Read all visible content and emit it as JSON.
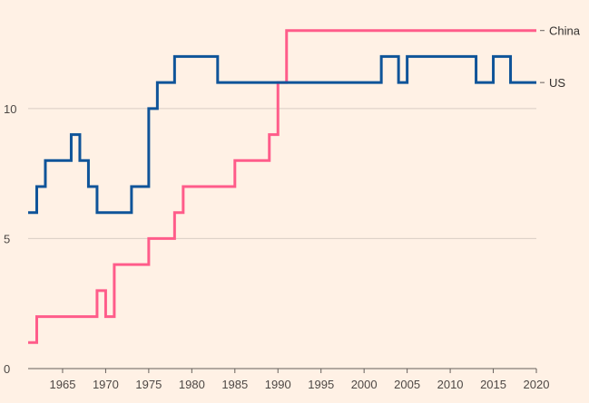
{
  "chart_data": {
    "type": "line",
    "step": "after",
    "title": "",
    "xlabel": "",
    "ylabel": "",
    "xlim": [
      1961,
      2020
    ],
    "ylim": [
      0,
      14
    ],
    "grid": true,
    "legend": "direct labels at right end of lines",
    "x_ticks": [
      {
        "value": 1965,
        "label": "1965"
      },
      {
        "value": 1970,
        "label": "1970"
      },
      {
        "value": 1975,
        "label": "1975"
      },
      {
        "value": 1980,
        "label": "1980"
      },
      {
        "value": 1985,
        "label": "1985"
      },
      {
        "value": 1990,
        "label": "1990"
      },
      {
        "value": 1995,
        "label": "1995"
      },
      {
        "value": 2000,
        "label": "2000"
      },
      {
        "value": 2005,
        "label": "2005"
      },
      {
        "value": 2010,
        "label": "2010"
      },
      {
        "value": 2015,
        "label": "2015"
      },
      {
        "value": 2020,
        "label": "2020"
      }
    ],
    "y_ticks": [
      {
        "value": 0,
        "label": "0"
      },
      {
        "value": 5,
        "label": "5"
      },
      {
        "value": 10,
        "label": "10"
      }
    ],
    "series": [
      {
        "name": "China",
        "label": "China",
        "color": "#ff5c8a",
        "x": [
          1961,
          1962,
          1963,
          1964,
          1965,
          1966,
          1967,
          1968,
          1969,
          1970,
          1971,
          1972,
          1973,
          1974,
          1975,
          1976,
          1977,
          1978,
          1979,
          1980,
          1981,
          1982,
          1983,
          1984,
          1985,
          1986,
          1987,
          1988,
          1989,
          1990,
          1991,
          1992,
          1993,
          1994,
          1995,
          1996,
          1997,
          1998,
          1999,
          2000,
          2001,
          2002,
          2003,
          2004,
          2005,
          2006,
          2007,
          2008,
          2009,
          2010,
          2011,
          2012,
          2013,
          2014,
          2015,
          2016,
          2017,
          2018,
          2019,
          2020
        ],
        "values": [
          1,
          2,
          2,
          2,
          2,
          2,
          2,
          2,
          3,
          2,
          4,
          4,
          4,
          4,
          5,
          5,
          5,
          6,
          7,
          7,
          7,
          7,
          7,
          7,
          8,
          8,
          8,
          8,
          9,
          11,
          13,
          13,
          13,
          13,
          13,
          13,
          13,
          13,
          13,
          13,
          13,
          13,
          13,
          13,
          13,
          13,
          13,
          13,
          13,
          13,
          13,
          13,
          13,
          13,
          13,
          13,
          13,
          13,
          13,
          13
        ]
      },
      {
        "name": "US",
        "label": "US",
        "color": "#0f5499",
        "x": [
          1961,
          1962,
          1963,
          1964,
          1965,
          1966,
          1967,
          1968,
          1969,
          1970,
          1971,
          1972,
          1973,
          1974,
          1975,
          1976,
          1977,
          1978,
          1979,
          1980,
          1981,
          1982,
          1983,
          1984,
          1985,
          1986,
          1987,
          1988,
          1989,
          1990,
          1991,
          1992,
          1993,
          1994,
          1995,
          1996,
          1997,
          1998,
          1999,
          2000,
          2001,
          2002,
          2003,
          2004,
          2005,
          2006,
          2007,
          2008,
          2009,
          2010,
          2011,
          2012,
          2013,
          2014,
          2015,
          2016,
          2017,
          2018,
          2019,
          2020
        ],
        "values": [
          6,
          7,
          8,
          8,
          8,
          9,
          8,
          7,
          6,
          6,
          6,
          6,
          7,
          7,
          10,
          11,
          11,
          12,
          12,
          12,
          12,
          12,
          11,
          11,
          11,
          11,
          11,
          11,
          11,
          11,
          11,
          11,
          11,
          11,
          11,
          11,
          11,
          11,
          11,
          11,
          11,
          12,
          12,
          11,
          12,
          12,
          12,
          12,
          12,
          12,
          12,
          12,
          11,
          11,
          12,
          12,
          11,
          11,
          11,
          11
        ]
      }
    ]
  }
}
